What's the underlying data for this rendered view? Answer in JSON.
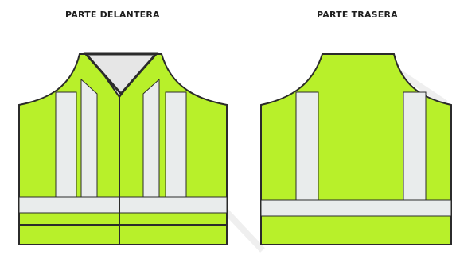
{
  "labels": {
    "front": "PARTE DELANTERA",
    "back": "PARTE TRASERA"
  },
  "colors": {
    "vest_fill": "#b8f02a",
    "reflective_stripe": "#e9ecec",
    "collar_fill": "#e6e6e6",
    "outline": "#2b2b2b"
  }
}
